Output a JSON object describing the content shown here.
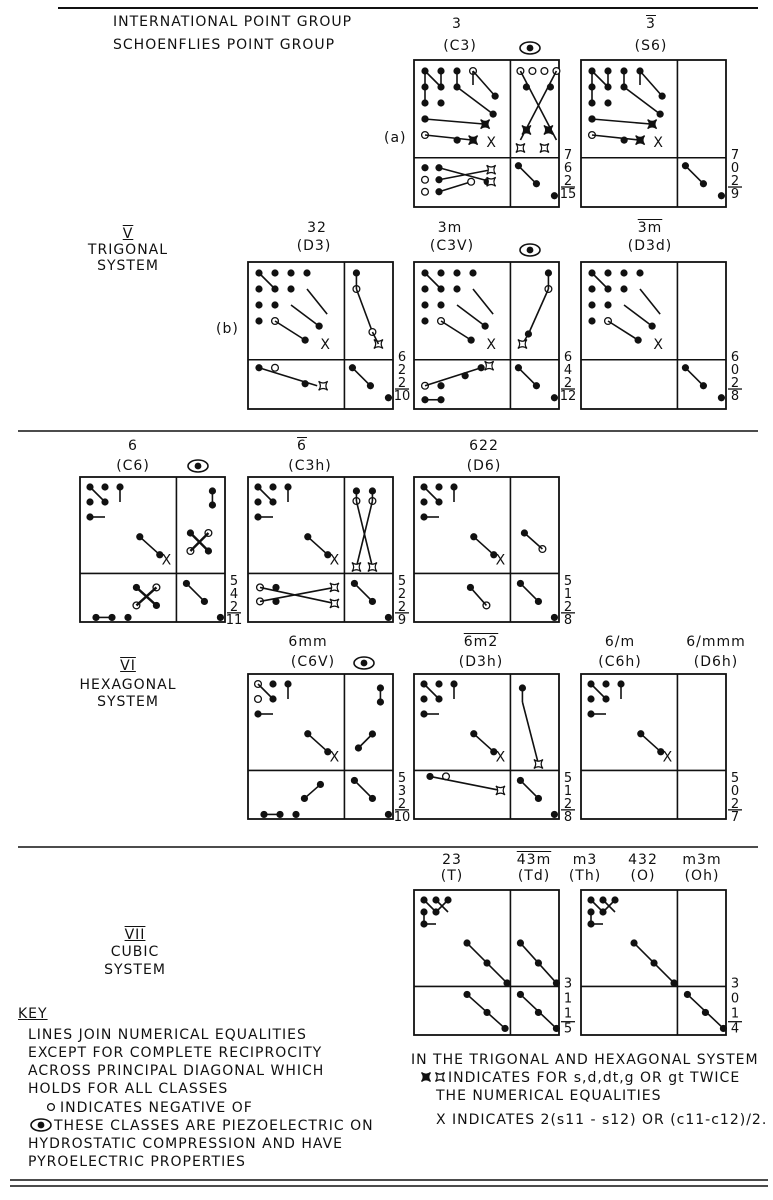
{
  "header": {
    "international_label": "INTERNATIONAL POINT GROUP",
    "schoenflies_label": "SCHOENFLIES POINT GROUP"
  },
  "systems": {
    "trigonal": {
      "numeral": "V",
      "name1": "TRIGONAL",
      "name2": "SYSTEM"
    },
    "hexagonal": {
      "numeral": "VI",
      "name1": "HEXAGONAL",
      "name2": "SYSTEM"
    },
    "cubic": {
      "numeral": "VII",
      "name1": "CUBIC",
      "name2": "SYSTEM"
    }
  },
  "row_labels": {
    "a": "(a)",
    "b": "(b)"
  },
  "classes": {
    "c3": {
      "intl": "3",
      "schoen": "(C3)",
      "nums": [
        "7",
        "6",
        "2",
        "15"
      ],
      "piezo": true
    },
    "s6": {
      "intl": "3",
      "intl_bar": true,
      "schoen": "(S6)",
      "nums": [
        "7",
        "0",
        "2",
        "9"
      ]
    },
    "d3": {
      "intl": "32",
      "schoen": "(D3)",
      "nums": [
        "6",
        "2",
        "2",
        "10"
      ]
    },
    "c3v": {
      "intl": "3m",
      "schoen": "(C3V)",
      "nums": [
        "6",
        "4",
        "2",
        "12"
      ],
      "piezo": true
    },
    "d3d": {
      "intl": "3m",
      "intl_bar": true,
      "schoen": "(D3d)",
      "nums": [
        "6",
        "0",
        "2",
        "8"
      ]
    },
    "c6": {
      "intl": "6",
      "schoen": "(C6)",
      "nums": [
        "5",
        "4",
        "2",
        "11"
      ],
      "piezo": true
    },
    "c3h": {
      "intl": "6",
      "intl_bar": true,
      "schoen": "(C3h)",
      "nums": [
        "5",
        "2",
        "2",
        "9"
      ]
    },
    "d6": {
      "intl": "622",
      "schoen": "(D6)",
      "nums": [
        "5",
        "1",
        "2",
        "8"
      ]
    },
    "c6v": {
      "intl": "6mm",
      "schoen": "(C6V)",
      "nums": [
        "5",
        "3",
        "2",
        "10"
      ],
      "piezo": true
    },
    "d3h": {
      "intl": "6m2",
      "intl_bar": true,
      "schoen": "(D3h)",
      "nums": [
        "5",
        "1",
        "2",
        "8"
      ]
    },
    "c6h": {
      "intl": "6/m",
      "schoen": "(C6h)"
    },
    "d6h": {
      "intl": "6/mmm",
      "schoen": "(D6h)",
      "nums": [
        "5",
        "0",
        "2",
        "7"
      ]
    },
    "t": {
      "intl": "23",
      "schoen": "(T)"
    },
    "td": {
      "intl": "43m",
      "intl_bar": true,
      "schoen": "(Td)",
      "nums": [
        "3",
        "1",
        "1",
        "5"
      ]
    },
    "th": {
      "intl": "m3",
      "schoen": "(Th)"
    },
    "o": {
      "intl": "432",
      "schoen": "(O)"
    },
    "oh": {
      "intl": "m3m",
      "schoen": "(Oh)",
      "nums": [
        "3",
        "0",
        "1",
        "4"
      ]
    }
  },
  "key": {
    "title": "KEY",
    "line1": "LINES JOIN NUMERICAL EQUALITIES",
    "line2": "EXCEPT FOR COMPLETE RECIPROCITY",
    "line3": "ACROSS PRINCIPAL DIAGONAL WHICH",
    "line4": "HOLDS FOR ALL CLASSES",
    "negative": "INDICATES NEGATIVE OF",
    "piezo1": "THESE CLASSES ARE PIEZOELECTRIC ON",
    "piezo2": "HYDROSTATIC COMPRESSION AND HAVE",
    "piezo3": "PYROELECTRIC PROPERTIES"
  },
  "notes": {
    "line1": "IN THE TRIGONAL AND HEXAGONAL SYSTEM",
    "line2": "INDICATES FOR s,d,dt,g OR gt TWICE",
    "line3": "THE NUMERICAL EQUALITIES",
    "line4": "X INDICATES 2(s11 - s12) OR (c11-c12)/2."
  }
}
